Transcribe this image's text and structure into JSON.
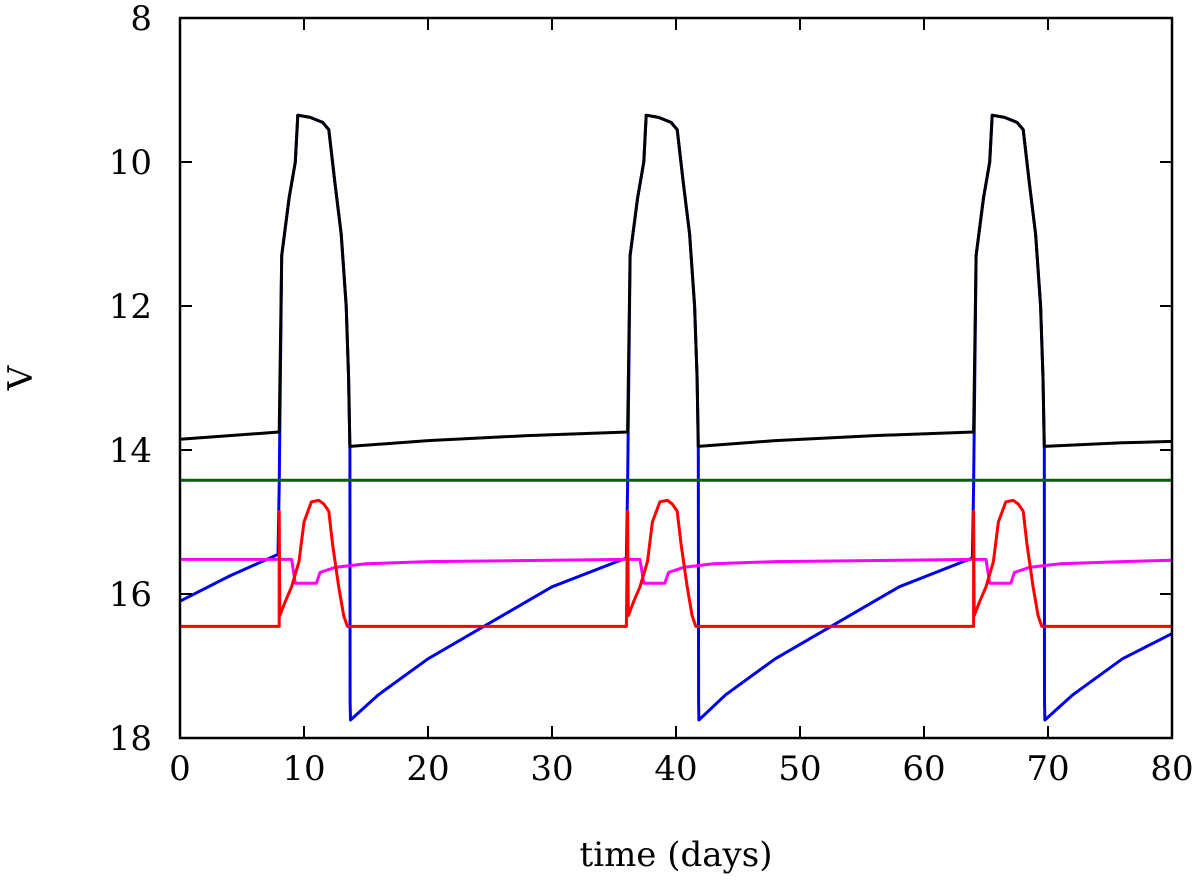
{
  "chart_data": {
    "type": "line",
    "xlabel": "time (days)",
    "ylabel": "V",
    "xlim": [
      0,
      80
    ],
    "ylim": [
      18,
      8
    ],
    "y_inverted": true,
    "grid": false,
    "x_ticks": [
      0,
      10,
      20,
      30,
      40,
      50,
      60,
      70,
      80
    ],
    "y_ticks": [
      8,
      10,
      12,
      14,
      16,
      18
    ],
    "series": [
      {
        "color": "#0000ee",
        "points": [
          [
            0,
            16.1
          ],
          [
            4,
            15.75
          ],
          [
            7.9,
            15.45
          ],
          [
            8.0,
            14.5
          ],
          [
            8.2,
            11.3
          ],
          [
            8.8,
            10.5
          ],
          [
            9.3,
            10.0
          ],
          [
            9.5,
            9.35
          ],
          [
            10.5,
            9.38
          ],
          [
            11.5,
            9.45
          ],
          [
            12.0,
            9.55
          ],
          [
            12.5,
            10.3
          ],
          [
            13.0,
            11.0
          ],
          [
            13.4,
            12.0
          ],
          [
            13.6,
            13.0
          ],
          [
            13.7,
            14.0
          ],
          [
            13.72,
            17.5
          ],
          [
            13.75,
            17.75
          ],
          [
            16,
            17.4
          ],
          [
            20,
            16.9
          ],
          [
            25,
            16.4
          ],
          [
            30,
            15.9
          ],
          [
            36,
            15.5
          ],
          [
            36.1,
            14.5
          ],
          [
            36.3,
            11.3
          ],
          [
            36.9,
            10.5
          ],
          [
            37.4,
            10.0
          ],
          [
            37.6,
            9.35
          ],
          [
            38.6,
            9.38
          ],
          [
            39.6,
            9.45
          ],
          [
            40.1,
            9.55
          ],
          [
            40.6,
            10.3
          ],
          [
            41.1,
            11.0
          ],
          [
            41.5,
            12.0
          ],
          [
            41.7,
            13.0
          ],
          [
            41.8,
            14.0
          ],
          [
            41.82,
            17.5
          ],
          [
            41.85,
            17.75
          ],
          [
            44,
            17.4
          ],
          [
            48,
            16.9
          ],
          [
            53,
            16.4
          ],
          [
            58,
            15.9
          ],
          [
            63.9,
            15.5
          ],
          [
            64.0,
            14.5
          ],
          [
            64.2,
            11.3
          ],
          [
            64.8,
            10.5
          ],
          [
            65.3,
            10.0
          ],
          [
            65.5,
            9.35
          ],
          [
            66.5,
            9.38
          ],
          [
            67.5,
            9.45
          ],
          [
            68.0,
            9.55
          ],
          [
            68.5,
            10.3
          ],
          [
            69.0,
            11.0
          ],
          [
            69.4,
            12.0
          ],
          [
            69.6,
            13.0
          ],
          [
            69.7,
            14.0
          ],
          [
            69.72,
            17.5
          ],
          [
            69.75,
            17.75
          ],
          [
            72,
            17.4
          ],
          [
            76,
            16.9
          ],
          [
            80,
            16.55
          ]
        ]
      },
      {
        "color": "#000000",
        "points": [
          [
            0,
            13.85
          ],
          [
            4,
            13.8
          ],
          [
            8.0,
            13.75
          ],
          [
            8.2,
            11.3
          ],
          [
            8.8,
            10.5
          ],
          [
            9.3,
            10.0
          ],
          [
            9.5,
            9.35
          ],
          [
            10.5,
            9.38
          ],
          [
            11.5,
            9.45
          ],
          [
            12.0,
            9.55
          ],
          [
            12.5,
            10.3
          ],
          [
            13.0,
            11.0
          ],
          [
            13.4,
            12.0
          ],
          [
            13.6,
            13.0
          ],
          [
            13.7,
            13.95
          ],
          [
            20,
            13.87
          ],
          [
            28,
            13.8
          ],
          [
            36.1,
            13.75
          ],
          [
            36.3,
            11.3
          ],
          [
            36.9,
            10.5
          ],
          [
            37.4,
            10.0
          ],
          [
            37.6,
            9.35
          ],
          [
            38.6,
            9.38
          ],
          [
            39.6,
            9.45
          ],
          [
            40.1,
            9.55
          ],
          [
            40.6,
            10.3
          ],
          [
            41.1,
            11.0
          ],
          [
            41.5,
            12.0
          ],
          [
            41.7,
            13.0
          ],
          [
            41.8,
            13.95
          ],
          [
            48,
            13.87
          ],
          [
            56,
            13.8
          ],
          [
            64.0,
            13.75
          ],
          [
            64.2,
            11.3
          ],
          [
            64.8,
            10.5
          ],
          [
            65.3,
            10.0
          ],
          [
            65.5,
            9.35
          ],
          [
            66.5,
            9.38
          ],
          [
            67.5,
            9.45
          ],
          [
            68.0,
            9.55
          ],
          [
            68.5,
            10.3
          ],
          [
            69.0,
            11.0
          ],
          [
            69.4,
            12.0
          ],
          [
            69.6,
            13.0
          ],
          [
            69.7,
            13.95
          ],
          [
            76,
            13.9
          ],
          [
            80,
            13.88
          ]
        ]
      },
      {
        "color": "#0b5e0b",
        "points": [
          [
            0,
            14.42
          ],
          [
            80,
            14.42
          ]
        ]
      },
      {
        "color": "#ff00ff",
        "points": [
          [
            0,
            15.52
          ],
          [
            9.0,
            15.52
          ],
          [
            9.3,
            15.85
          ],
          [
            11.0,
            15.85
          ],
          [
            11.3,
            15.7
          ],
          [
            12.5,
            15.63
          ],
          [
            15,
            15.58
          ],
          [
            20,
            15.55
          ],
          [
            36.0,
            15.52
          ],
          [
            37.1,
            15.52
          ],
          [
            37.4,
            15.85
          ],
          [
            39.1,
            15.85
          ],
          [
            39.4,
            15.7
          ],
          [
            40.6,
            15.63
          ],
          [
            43,
            15.58
          ],
          [
            48,
            15.55
          ],
          [
            64.0,
            15.52
          ],
          [
            65.0,
            15.52
          ],
          [
            65.3,
            15.85
          ],
          [
            67.0,
            15.85
          ],
          [
            67.3,
            15.7
          ],
          [
            68.5,
            15.63
          ],
          [
            71,
            15.58
          ],
          [
            76,
            15.55
          ],
          [
            80,
            15.53
          ]
        ]
      },
      {
        "color": "#ff0000",
        "points": [
          [
            0,
            16.45
          ],
          [
            8.0,
            16.45
          ],
          [
            8.0,
            14.85
          ],
          [
            8.05,
            16.3
          ],
          [
            8.5,
            16.1
          ],
          [
            9.0,
            15.9
          ],
          [
            9.6,
            15.55
          ],
          [
            10.0,
            15.0
          ],
          [
            10.6,
            14.72
          ],
          [
            11.2,
            14.7
          ],
          [
            11.6,
            14.75
          ],
          [
            12.0,
            14.85
          ],
          [
            12.3,
            15.3
          ],
          [
            12.8,
            15.9
          ],
          [
            13.2,
            16.3
          ],
          [
            13.5,
            16.45
          ],
          [
            36.0,
            16.45
          ],
          [
            36.1,
            14.85
          ],
          [
            36.15,
            16.3
          ],
          [
            36.6,
            16.1
          ],
          [
            37.1,
            15.9
          ],
          [
            37.7,
            15.55
          ],
          [
            38.1,
            15.0
          ],
          [
            38.7,
            14.72
          ],
          [
            39.3,
            14.7
          ],
          [
            39.7,
            14.75
          ],
          [
            40.1,
            14.85
          ],
          [
            40.4,
            15.3
          ],
          [
            40.9,
            15.9
          ],
          [
            41.3,
            16.3
          ],
          [
            41.6,
            16.45
          ],
          [
            64.0,
            16.45
          ],
          [
            64.0,
            14.85
          ],
          [
            64.05,
            16.3
          ],
          [
            64.5,
            16.1
          ],
          [
            65.0,
            15.9
          ],
          [
            65.6,
            15.55
          ],
          [
            66.0,
            15.0
          ],
          [
            66.6,
            14.72
          ],
          [
            67.2,
            14.7
          ],
          [
            67.6,
            14.75
          ],
          [
            68.0,
            14.85
          ],
          [
            68.3,
            15.3
          ],
          [
            68.8,
            15.9
          ],
          [
            69.2,
            16.3
          ],
          [
            69.5,
            16.45
          ],
          [
            80,
            16.45
          ]
        ]
      }
    ]
  }
}
